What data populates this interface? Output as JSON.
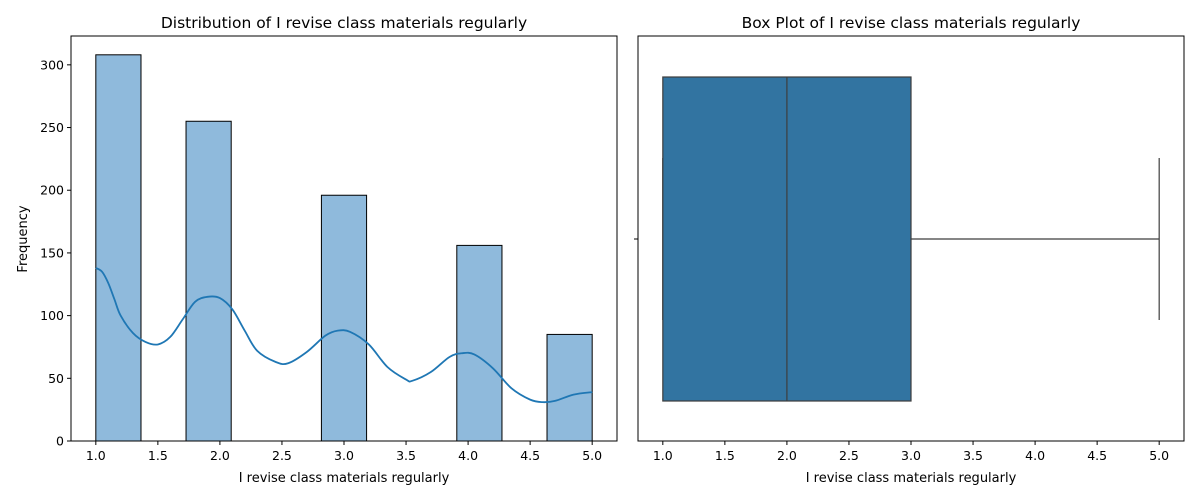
{
  "chart_data": [
    {
      "type": "bar",
      "subtype": "histogram-with-kde",
      "title": "Distribution of I revise class materials regularly",
      "xlabel": "I revise class materials regularly",
      "ylabel": "Frequency",
      "xlim": [
        0.8,
        5.2
      ],
      "ylim": [
        0,
        323
      ],
      "x_ticks": [
        "1.0",
        "1.5",
        "2.0",
        "2.5",
        "3.0",
        "3.5",
        "4.0",
        "4.5",
        "5.0"
      ],
      "y_ticks": [
        "0",
        "50",
        "100",
        "150",
        "200",
        "250",
        "300"
      ],
      "bins": [
        {
          "x0": 1.0,
          "x1": 1.364,
          "count": 308
        },
        {
          "x0": 1.727,
          "x1": 2.091,
          "count": 255
        },
        {
          "x0": 2.818,
          "x1": 3.182,
          "count": 196
        },
        {
          "x0": 3.909,
          "x1": 4.273,
          "count": 156
        },
        {
          "x0": 4.636,
          "x1": 5.0,
          "count": 85
        }
      ],
      "bar_color": "#8fbadc",
      "kde": {
        "color": "#1f77b4",
        "points": [
          [
            1.0,
            138
          ],
          [
            1.05,
            135
          ],
          [
            1.1,
            126
          ],
          [
            1.15,
            113
          ],
          [
            1.2,
            100
          ],
          [
            1.3,
            86
          ],
          [
            1.4,
            79
          ],
          [
            1.5,
            77
          ],
          [
            1.6,
            83
          ],
          [
            1.7,
            97
          ],
          [
            1.8,
            111
          ],
          [
            1.9,
            115
          ],
          [
            2.0,
            114
          ],
          [
            2.1,
            105
          ],
          [
            2.2,
            88
          ],
          [
            2.3,
            72
          ],
          [
            2.45,
            63
          ],
          [
            2.55,
            62
          ],
          [
            2.7,
            71
          ],
          [
            2.85,
            84
          ],
          [
            2.95,
            88
          ],
          [
            3.05,
            87
          ],
          [
            3.2,
            77
          ],
          [
            3.35,
            59
          ],
          [
            3.5,
            49
          ],
          [
            3.55,
            48
          ],
          [
            3.7,
            55
          ],
          [
            3.85,
            67
          ],
          [
            3.95,
            70
          ],
          [
            4.05,
            69
          ],
          [
            4.2,
            58
          ],
          [
            4.35,
            42
          ],
          [
            4.5,
            33
          ],
          [
            4.6,
            31
          ],
          [
            4.7,
            32
          ],
          [
            4.85,
            37
          ],
          [
            5.0,
            39
          ]
        ]
      }
    },
    {
      "type": "box",
      "title": "Box Plot of I revise class materials regularly",
      "xlabel": "I revise class materials regularly",
      "xlim": [
        0.8,
        5.2
      ],
      "x_ticks": [
        "1.0",
        "1.5",
        "2.0",
        "2.5",
        "3.0",
        "3.5",
        "4.0",
        "4.5",
        "5.0"
      ],
      "stats": {
        "min": 1.0,
        "q1": 1.0,
        "median": 2.0,
        "q3": 3.0,
        "max": 5.0
      },
      "box_color": "#3274a1"
    }
  ]
}
